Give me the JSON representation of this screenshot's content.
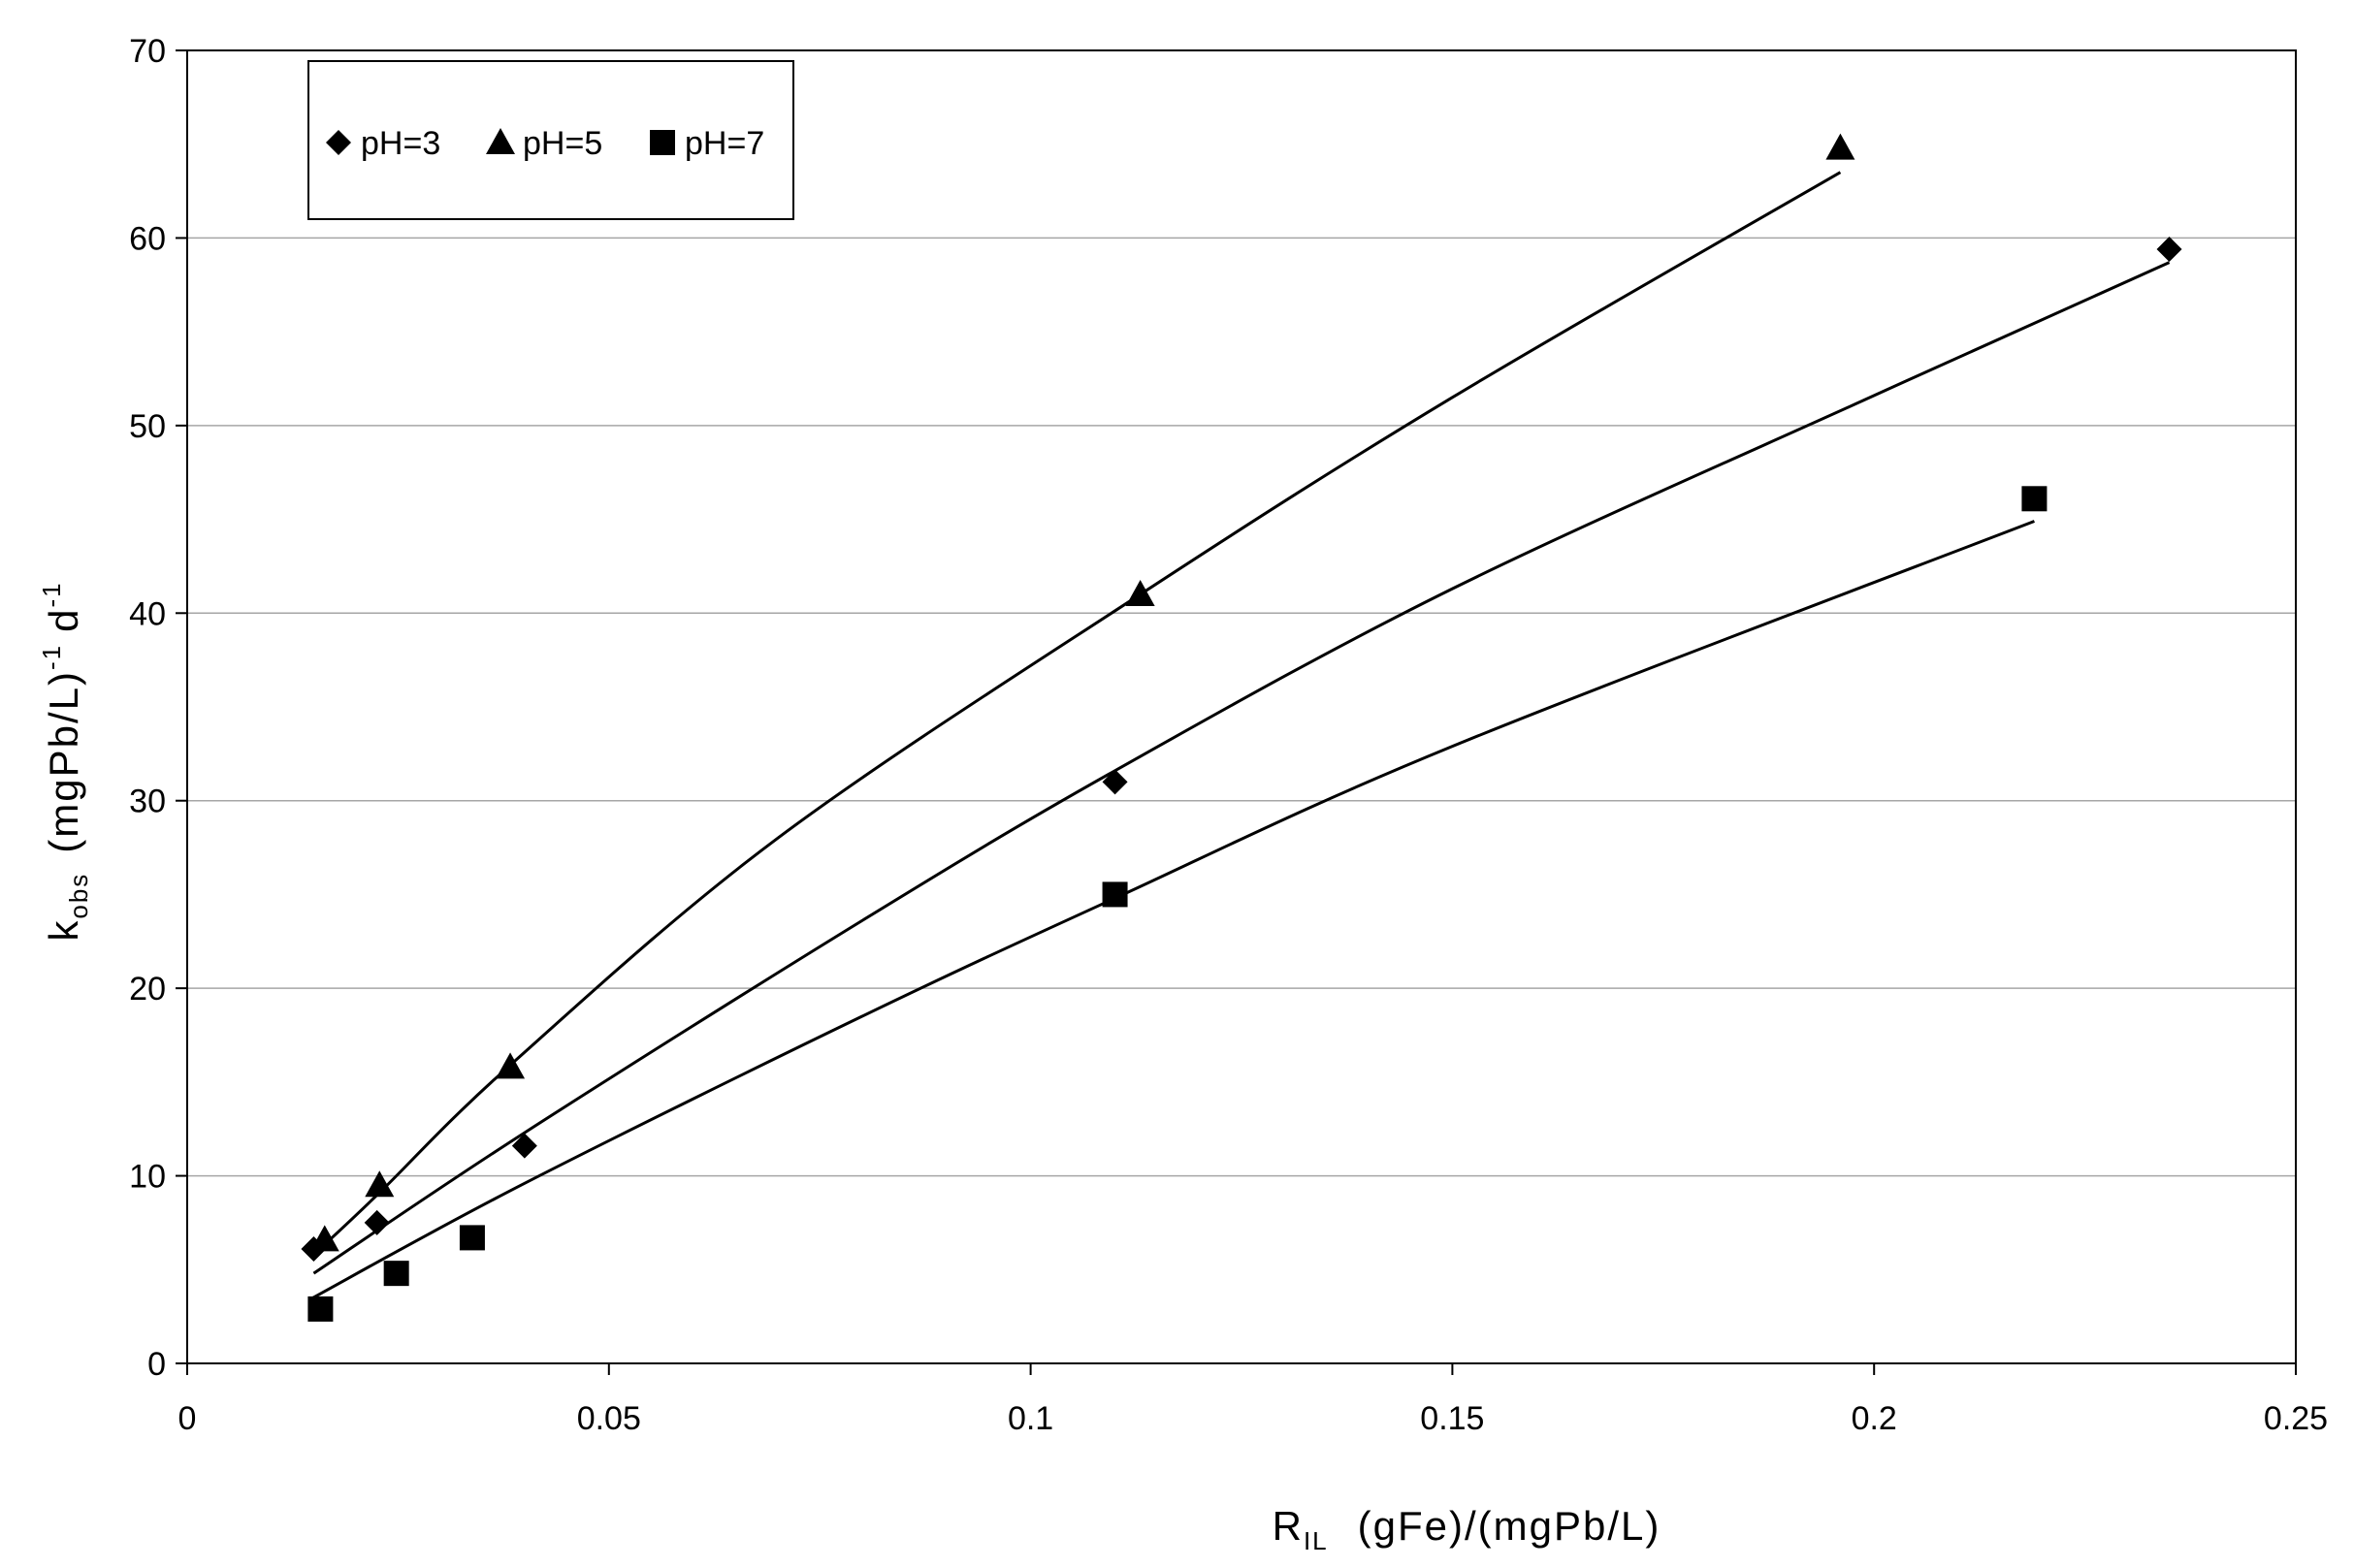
{
  "chart_data": {
    "type": "scatter",
    "title": "",
    "xlabel": {
      "main": "R",
      "sub": "IL",
      "rest": "(gFe)/(mgPb/L)"
    },
    "ylabel": {
      "main": "k",
      "sub": "obs",
      "rest": "(mgPb/L)",
      "sup1": "-1",
      "rest2": "d",
      "sup2": "-1"
    },
    "xlim": [
      0,
      0.25
    ],
    "ylim": [
      0,
      70
    ],
    "xticks": [
      0,
      0.05,
      0.1,
      0.15,
      0.2,
      0.25
    ],
    "xtick_labels": [
      "0",
      "0.05",
      "0.1",
      "0.15",
      "0.2",
      "0.25"
    ],
    "yticks": [
      0,
      10,
      20,
      30,
      40,
      50,
      60,
      70
    ],
    "ytick_labels": [
      "0",
      "10",
      "20",
      "30",
      "40",
      "50",
      "60",
      "70"
    ],
    "grid": "horizontal",
    "legend_position": "top-left",
    "series": [
      {
        "name": "pH=3",
        "marker": "diamond",
        "color": "#000000",
        "points": [
          [
            0.015,
            6.1
          ],
          [
            0.0225,
            7.5
          ],
          [
            0.04,
            11.6
          ],
          [
            0.11,
            31.0
          ],
          [
            0.235,
            59.4
          ]
        ],
        "trend": [
          [
            0.015,
            4.8
          ],
          [
            0.04,
            12.3
          ],
          [
            0.08,
            23.6
          ],
          [
            0.11,
            31.6
          ],
          [
            0.15,
            41.3
          ],
          [
            0.2,
            51.6
          ],
          [
            0.235,
            58.7
          ]
        ]
      },
      {
        "name": "pH=5",
        "marker": "triangle",
        "color": "#000000",
        "points": [
          [
            0.0163,
            6.6
          ],
          [
            0.0228,
            9.5
          ],
          [
            0.0383,
            15.8
          ],
          [
            0.113,
            41.0
          ],
          [
            0.196,
            64.8
          ]
        ],
        "trend": [
          [
            0.0155,
            6.0
          ],
          [
            0.0228,
            9.1
          ],
          [
            0.0383,
            15.9
          ],
          [
            0.07,
            28.0
          ],
          [
            0.113,
            41.0
          ],
          [
            0.15,
            51.5
          ],
          [
            0.196,
            63.5
          ]
        ]
      },
      {
        "name": "pH=7",
        "marker": "square",
        "color": "#000000",
        "points": [
          [
            0.0158,
            2.9
          ],
          [
            0.0248,
            4.8
          ],
          [
            0.0338,
            6.7
          ],
          [
            0.11,
            25.0
          ],
          [
            0.219,
            46.1
          ]
        ],
        "trend": [
          [
            0.0145,
            3.4
          ],
          [
            0.04,
            9.6
          ],
          [
            0.08,
            18.5
          ],
          [
            0.11,
            24.8
          ],
          [
            0.15,
            32.9
          ],
          [
            0.219,
            44.9
          ]
        ]
      }
    ]
  }
}
